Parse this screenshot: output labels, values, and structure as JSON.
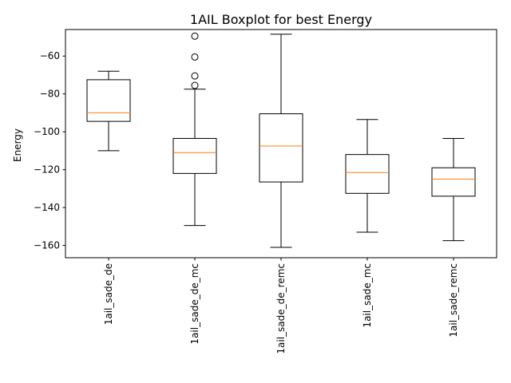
{
  "chart_data": {
    "type": "boxplot",
    "title": "1AIL Boxplot for best Energy",
    "xlabel": "",
    "ylabel": "Energy",
    "ylim": [
      -166.5,
      -46
    ],
    "yticks": [
      -160,
      -140,
      -120,
      -100,
      -80,
      -60
    ],
    "grid": false,
    "categories": [
      "1ail_sade_de",
      "1ail_sade_de_mc",
      "1ail_sade_de_remc",
      "1ail_sade_mc",
      "1ail_sade_remc"
    ],
    "boxes": [
      {
        "whisker_low": -110,
        "q1": -94.5,
        "median": -90,
        "q3": -72.5,
        "whisker_high": -68,
        "outliers": []
      },
      {
        "whisker_low": -149.5,
        "q1": -122,
        "median": -111,
        "q3": -103.5,
        "whisker_high": -77.5,
        "outliers": [
          -49.5,
          -60.5,
          -70.5,
          -75.5
        ]
      },
      {
        "whisker_low": -161,
        "q1": -126.5,
        "median": -107.5,
        "q3": -90.5,
        "whisker_high": -48.5,
        "outliers": []
      },
      {
        "whisker_low": -153,
        "q1": -132.5,
        "median": -121.5,
        "q3": -112,
        "whisker_high": -93.5,
        "outliers": []
      },
      {
        "whisker_low": -157.5,
        "q1": -134,
        "median": -125,
        "q3": -119,
        "whisker_high": -103.5,
        "outliers": []
      }
    ],
    "colors": {
      "box": "#000000",
      "median": "#ff7f0e",
      "outlier": "#000000"
    }
  }
}
